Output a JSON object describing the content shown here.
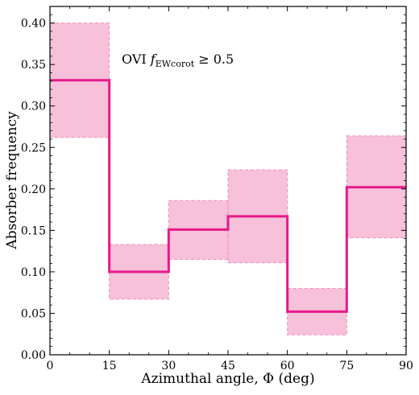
{
  "chart_data": {
    "type": "step",
    "xlabel": "Azimuthal angle, Φ (deg)",
    "ylabel": "Absorber frequency",
    "xlim": [
      0,
      90
    ],
    "ylim": [
      0,
      0.42
    ],
    "x_ticks": [
      0,
      15,
      30,
      45,
      60,
      75,
      90
    ],
    "x_tick_labels": [
      "0",
      "15",
      "30",
      "45",
      "60",
      "75",
      "90"
    ],
    "y_ticks": [
      0.0,
      0.05,
      0.1,
      0.15,
      0.2,
      0.25,
      0.3,
      0.35,
      0.4
    ],
    "y_tick_labels": [
      "0.00",
      "0.05",
      "0.10",
      "0.15",
      "0.20",
      "0.25",
      "0.30",
      "0.35",
      "0.40"
    ],
    "bin_edges": [
      0,
      15,
      30,
      45,
      60,
      75,
      90
    ],
    "values": [
      0.331,
      0.1,
      0.151,
      0.167,
      0.052,
      0.202
    ],
    "lower": [
      0.262,
      0.067,
      0.115,
      0.111,
      0.024,
      0.141
    ],
    "upper": [
      0.4,
      0.133,
      0.186,
      0.223,
      0.08,
      0.264
    ],
    "annotation": {
      "prefix": "OVI ",
      "f": "f",
      "subscript": "EWcorot",
      "suffix": " ≥ 0.5"
    },
    "colors": {
      "line": "#e6198c",
      "band_fill": "#f7c1d9",
      "band_edge": "#f08cbd"
    },
    "grid": false,
    "legend": "none"
  }
}
